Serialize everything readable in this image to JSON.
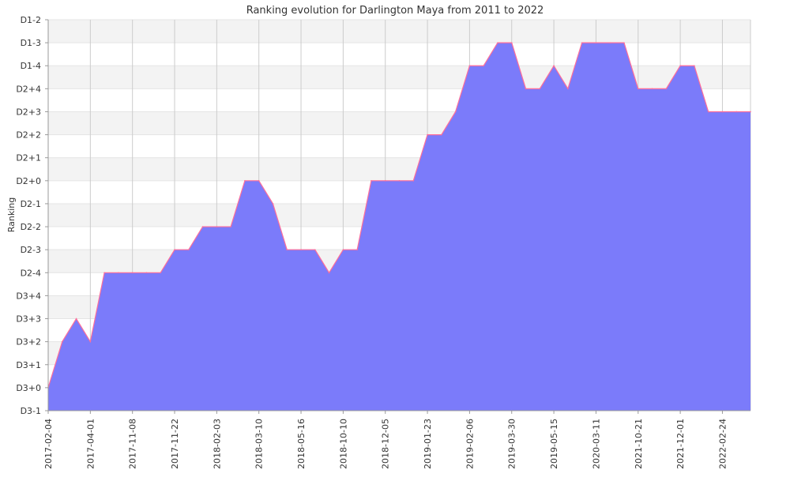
{
  "chart_data": {
    "type": "area",
    "title": "Ranking evolution for Darlington Maya from 2011 to 2022",
    "xlabel": "",
    "ylabel": "Ranking",
    "y_categories": [
      "D3-1",
      "D3+0",
      "D3+1",
      "D3+2",
      "D3+3",
      "D3+4",
      "D2-4",
      "D2-3",
      "D2-2",
      "D2-1",
      "D2+0",
      "D2+1",
      "D2+2",
      "D2+3",
      "D2+4",
      "D1-4",
      "D1-3",
      "D1-2"
    ],
    "x_tick_labels": [
      "2017-02-04",
      "2017-04-01",
      "2017-11-08",
      "2017-11-22",
      "2018-02-03",
      "2018-03-10",
      "2018-05-16",
      "2018-10-10",
      "2018-12-05",
      "2019-01-23",
      "2019-02-06",
      "2019-03-30",
      "2019-05-15",
      "2020-03-11",
      "2021-10-21",
      "2021-12-01",
      "2022-02-24"
    ],
    "x_tick_index": [
      0,
      3,
      6,
      9,
      12,
      15,
      18,
      21,
      24,
      27,
      30,
      33,
      36,
      39,
      42,
      45,
      48
    ],
    "series": [
      {
        "values": [
          "D3+0",
          "D3+2",
          "D3+3",
          "D3+2",
          "D2-4",
          "D2-4",
          "D2-4",
          "D2-4",
          "D2-4",
          "D2-3",
          "D2-3",
          "D2-2",
          "D2-2",
          "D2-2",
          "D2+0",
          "D2+0",
          "D2-1",
          "D2-3",
          "D2-3",
          "D2-3",
          "D2-4",
          "D2-3",
          "D2-3",
          "D2+0",
          "D2+0",
          "D2+0",
          "D2+0",
          "D2+2",
          "D2+2",
          "D2+3",
          "D1-4",
          "D1-4",
          "D1-3",
          "D1-3",
          "D2+4",
          "D2+4",
          "D1-4",
          "D2+4",
          "D1-3",
          "D1-3",
          "D1-3",
          "D1-3",
          "D2+4",
          "D2+4",
          "D2+4",
          "D1-4",
          "D1-4",
          "D2+3",
          "D2+3",
          "D2+3",
          "D2+3"
        ]
      }
    ],
    "colors": {
      "fill": "#7b7bfa",
      "stroke": "#ff6e9a",
      "band": "#f3f3f3",
      "grid": "#cccccc"
    },
    "grid": true,
    "legend": "none"
  }
}
